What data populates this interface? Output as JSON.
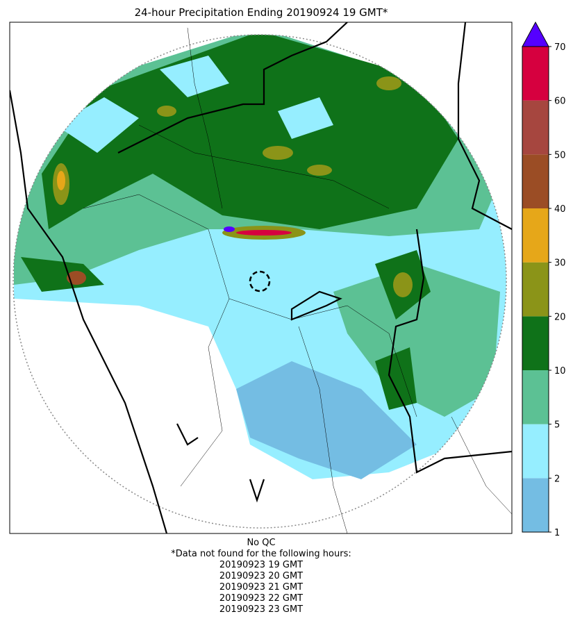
{
  "title": "24-hour Precipitation Ending 20190924 19 GMT*",
  "colorbar": {
    "levels": [
      1,
      2,
      5,
      10,
      20,
      30,
      40,
      50,
      60,
      70
    ],
    "colors": [
      "#74bde3",
      "#96eeff",
      "#5cc194",
      "#0f7219",
      "#8b9418",
      "#e6a719",
      "#9b4d25",
      "#a6463f",
      "#d6003f"
    ],
    "extend_color": "#5500ff"
  },
  "footer": {
    "qc": "No QC",
    "note": "*Data not found for the following hours:",
    "missing_hours": [
      "20190923 19 GMT",
      "20190923 20 GMT",
      "20190923 21 GMT",
      "20190923 22 GMT",
      "20190923 23 GMT"
    ]
  }
}
